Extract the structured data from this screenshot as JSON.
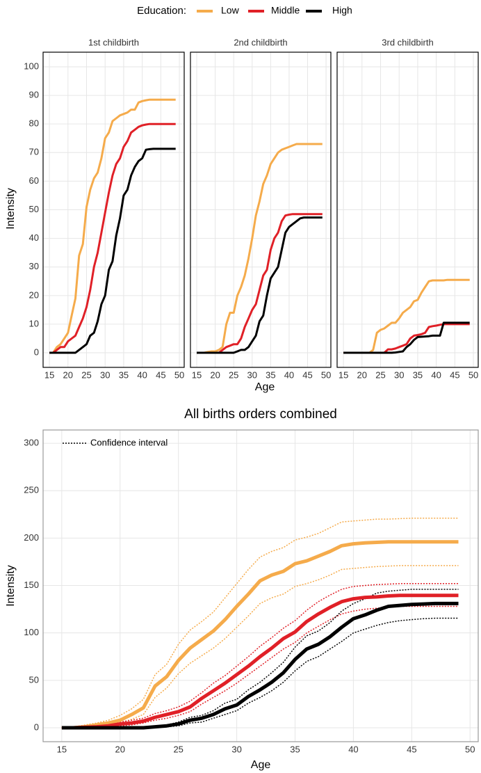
{
  "chart_data": [
    {
      "type": "line",
      "legend": {
        "title": "Education:",
        "entries": [
          {
            "name": "Low",
            "color": "#f5ab4b"
          },
          {
            "name": "Middle",
            "color": "#e02027"
          },
          {
            "name": "High",
            "color": "#000000"
          }
        ]
      },
      "xlabel": "Age",
      "ylabel": "Intensity",
      "x": [
        15,
        16,
        17,
        18,
        19,
        20,
        21,
        22,
        23,
        24,
        25,
        26,
        27,
        28,
        29,
        30,
        31,
        32,
        33,
        34,
        35,
        36,
        37,
        38,
        39,
        40,
        41,
        42,
        43,
        44,
        45,
        46,
        47,
        48,
        49
      ],
      "xlim": [
        13.3,
        51.3
      ],
      "xticks": [
        15,
        20,
        25,
        30,
        35,
        40,
        45,
        50
      ],
      "ylim": [
        -5.1,
        105.1
      ],
      "yticks": [
        0,
        10,
        20,
        30,
        40,
        50,
        60,
        70,
        80,
        90,
        100
      ],
      "grid": true,
      "panels": [
        {
          "title": "1st childbirth",
          "series": [
            {
              "color": "#f5ab4b",
              "values": [
                0,
                0,
                2,
                3,
                5,
                7,
                13,
                19,
                34,
                38,
                51,
                57,
                61,
                63,
                68,
                75,
                77,
                81,
                82,
                83,
                83.5,
                84,
                85,
                85,
                87.5,
                88,
                88.3,
                88.5,
                88.5,
                88.5,
                88.5,
                88.5,
                88.5,
                88.5,
                88.5
              ]
            },
            {
              "color": "#e02027",
              "values": [
                0,
                0,
                1,
                2,
                2,
                4,
                5,
                6,
                9,
                12,
                16,
                22,
                30,
                35,
                42,
                49,
                56,
                62,
                66,
                68,
                72,
                74,
                77,
                78,
                79,
                79.5,
                79.8,
                80,
                80,
                80,
                80,
                80,
                80,
                80,
                80
              ]
            },
            {
              "color": "#000000",
              "values": [
                0,
                0,
                0,
                0,
                0,
                0,
                0,
                0,
                1,
                2,
                3,
                6,
                7,
                11,
                17,
                20,
                29,
                32,
                41,
                47,
                55,
                57,
                62,
                65,
                67,
                68,
                71,
                71.2,
                71.3,
                71.3,
                71.3,
                71.3,
                71.3,
                71.3,
                71.3
              ]
            }
          ]
        },
        {
          "title": "2nd childbirth",
          "series": [
            {
              "color": "#f5ab4b",
              "values": [
                0,
                0,
                0,
                0.3,
                0.5,
                0.5,
                1,
                2,
                10,
                14,
                14,
                20,
                23,
                27,
                33,
                40,
                48,
                53,
                59,
                62,
                66,
                68,
                70,
                71,
                71.5,
                72,
                72.5,
                73,
                73,
                73,
                73,
                73,
                73,
                73,
                73
              ]
            },
            {
              "color": "#e02027",
              "values": [
                0,
                0,
                0,
                0,
                0,
                0,
                0,
                1,
                2,
                2.5,
                3,
                3,
                5,
                9,
                12,
                15,
                17,
                22,
                27,
                29,
                36,
                40,
                42,
                46,
                48,
                48.3,
                48.5,
                48.5,
                48.5,
                48.5,
                48.5,
                48.5,
                48.5,
                48.5,
                48.5
              ]
            },
            {
              "color": "#000000",
              "values": [
                0,
                0,
                0,
                0,
                0,
                0,
                0,
                0,
                0,
                0,
                0,
                0.5,
                1,
                1,
                2,
                4,
                6,
                11,
                13,
                20,
                26,
                28,
                30,
                36,
                42,
                44,
                45,
                46,
                47,
                47.3,
                47.3,
                47.3,
                47.3,
                47.3,
                47.3
              ]
            }
          ]
        },
        {
          "title": "3rd childbirth",
          "series": [
            {
              "color": "#f5ab4b",
              "values": [
                0,
                0,
                0,
                0,
                0,
                0,
                0,
                0,
                1,
                7,
                8,
                8.5,
                9.5,
                10.5,
                10.5,
                12,
                14,
                15,
                16,
                18,
                18.5,
                21,
                23,
                25,
                25.3,
                25.3,
                25.3,
                25.3,
                25.5,
                25.5,
                25.5,
                25.5,
                25.5,
                25.5,
                25.5
              ]
            },
            {
              "color": "#e02027",
              "values": [
                0,
                0,
                0,
                0,
                0,
                0,
                0,
                0,
                0,
                0,
                0,
                0,
                1.2,
                1.2,
                1.5,
                2,
                2.5,
                3,
                5,
                6,
                6.2,
                6.5,
                7,
                9,
                9.3,
                9.5,
                9.8,
                10,
                10,
                10,
                10,
                10,
                10,
                10,
                10
              ]
            },
            {
              "color": "#000000",
              "values": [
                0,
                0,
                0,
                0,
                0,
                0,
                0,
                0,
                0,
                0,
                0,
                0,
                0,
                0,
                0.1,
                0.3,
                0.5,
                2,
                3,
                4.5,
                5.5,
                5.6,
                5.7,
                5.8,
                6,
                6,
                6,
                10.5,
                10.5,
                10.5,
                10.5,
                10.5,
                10.5,
                10.5,
                10.5
              ]
            }
          ]
        }
      ]
    },
    {
      "type": "line",
      "title": "All births orders combined",
      "xlabel": "Age",
      "ylabel": "Intensity",
      "ci_label": "Confidence interval",
      "x": [
        15,
        16,
        17,
        18,
        19,
        20,
        21,
        22,
        23,
        24,
        25,
        26,
        27,
        28,
        29,
        30,
        31,
        32,
        33,
        34,
        35,
        36,
        37,
        38,
        39,
        40,
        41,
        42,
        43,
        44,
        45,
        46,
        47,
        48,
        49
      ],
      "xlim": [
        13.4,
        50.7
      ],
      "xticks": [
        15,
        20,
        25,
        30,
        35,
        40,
        45,
        50
      ],
      "ylim": [
        -14.7,
        314
      ],
      "yticks": [
        0,
        50,
        100,
        150,
        200,
        250,
        300
      ],
      "grid": true,
      "series": [
        {
          "color": "#f5ab4b",
          "values": [
            0,
            0,
            1,
            3,
            5,
            8,
            14,
            21,
            44,
            54,
            71,
            84,
            93,
            102,
            114,
            128,
            141,
            155,
            161,
            165,
            173,
            176,
            181,
            186,
            192,
            194,
            195,
            195.5,
            196,
            196,
            196,
            196,
            196,
            196,
            196
          ],
          "upper": [
            0,
            1,
            3,
            5,
            8,
            13,
            20,
            30,
            56,
            67,
            88,
            103,
            112,
            122,
            137,
            152,
            167,
            180,
            186,
            190,
            198,
            201,
            205,
            211,
            217,
            218,
            219,
            220,
            220,
            220.5,
            221,
            221,
            221,
            221,
            221
          ],
          "lower": [
            0,
            0,
            0.5,
            1,
            3,
            5,
            9,
            14,
            32,
            42,
            57,
            68,
            76,
            84,
            94,
            106,
            118,
            131,
            137,
            141,
            149,
            152,
            156,
            161,
            167,
            168,
            169,
            170,
            170.5,
            171,
            171,
            171,
            171,
            171,
            171
          ]
        },
        {
          "color": "#e02027",
          "values": [
            0,
            0,
            0.5,
            1,
            2,
            4,
            5,
            7,
            11,
            14,
            17,
            22,
            31,
            39,
            47,
            56,
            65,
            75,
            84,
            94,
            101,
            112,
            120,
            127,
            133,
            136,
            137.5,
            138,
            139,
            139.5,
            139.5,
            139.5,
            139.5,
            139.5,
            139.5
          ],
          "upper": [
            0,
            0.5,
            1,
            2,
            3,
            6,
            8,
            10,
            15,
            18,
            22,
            28,
            37,
            47,
            55,
            65,
            75,
            86,
            95,
            105,
            113,
            124,
            133,
            140,
            146,
            149,
            150,
            151,
            151.5,
            152,
            152,
            152,
            152,
            152,
            152
          ],
          "lower": [
            0,
            0,
            0,
            0.5,
            1,
            2,
            3,
            5,
            8,
            10,
            13,
            17,
            25,
            32,
            39,
            47,
            56,
            65,
            74,
            83,
            90,
            100,
            107,
            114,
            120,
            123,
            125,
            126,
            127,
            128,
            128,
            128,
            128,
            128,
            128
          ]
        },
        {
          "color": "#000000",
          "values": [
            0,
            0,
            0,
            0,
            0,
            0,
            0,
            0,
            1,
            2,
            4,
            8,
            10,
            14,
            20,
            24,
            33,
            40,
            48,
            58,
            72,
            83,
            88,
            96,
            106,
            115,
            119,
            124,
            128,
            129,
            130,
            130.5,
            131,
            131,
            131
          ],
          "upper": [
            0,
            0,
            0,
            0,
            0,
            0,
            0,
            1,
            2,
            3,
            6,
            11,
            13,
            18,
            26,
            30,
            40,
            48,
            58,
            69,
            85,
            97,
            102,
            111,
            123,
            131,
            136,
            142,
            144,
            145,
            146,
            146,
            146,
            146,
            146
          ],
          "lower": [
            0,
            0,
            0,
            0,
            0,
            0,
            0,
            0,
            0.5,
            1,
            2,
            5,
            6,
            10,
            14,
            18,
            26,
            32,
            39,
            48,
            60,
            70,
            75,
            83,
            91,
            100,
            104,
            108,
            111,
            113,
            114,
            115,
            115.5,
            115.5,
            115.5
          ]
        }
      ]
    }
  ]
}
